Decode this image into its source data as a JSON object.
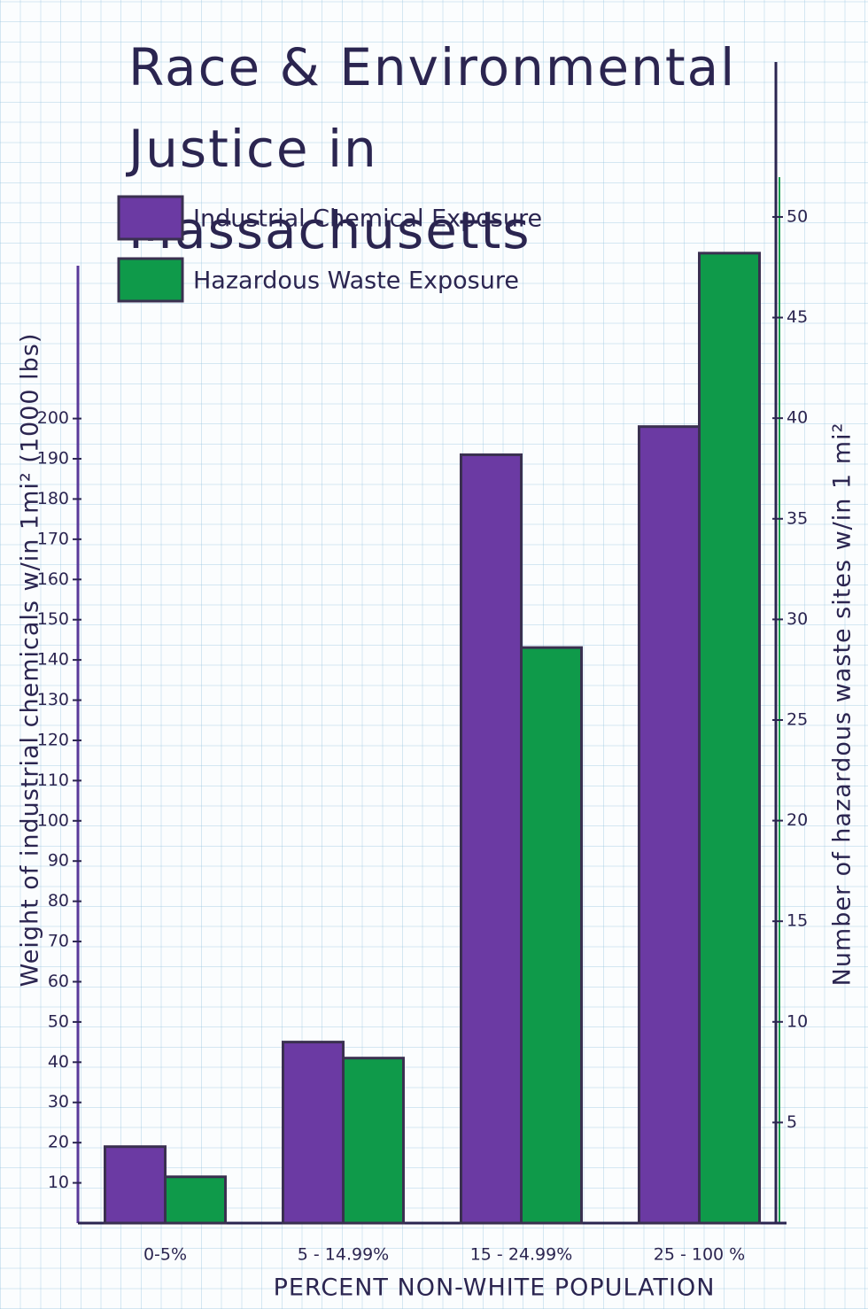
{
  "chart_data": {
    "type": "bar",
    "title": "Race & Environmental Justice in Massachusetts",
    "x_label": "PERCENT NON-WHITE POPULATION",
    "y_label": "Weight of industrial chemicals w/in 1mi² (1000 lbs)",
    "y2_label": "Number of hazardous waste sites w/in 1 mi²",
    "categories": [
      "0-5%",
      "5 - 14.99%",
      "15 - 24.99%",
      "25 - 100 %"
    ],
    "series": [
      {
        "name": "Industrial Chemical Exposure",
        "color": "#6b3aa3",
        "values": [
          19,
          45,
          191,
          198
        ]
      },
      {
        "name": "Hazardous Waste Exposure",
        "color": "#0f9a4a",
        "values": [
          2.3,
          8.2,
          28.6,
          48.2
        ],
        "axis": "y2"
      }
    ],
    "ylim": [
      0,
      238
    ],
    "yticks": [
      10,
      20,
      30,
      40,
      50,
      60,
      70,
      80,
      90,
      100,
      110,
      120,
      130,
      140,
      150,
      160,
      170,
      180,
      190,
      200
    ],
    "y2lim": [
      0,
      57.7
    ],
    "y2ticks": [
      5,
      10,
      15,
      20,
      25,
      30,
      35,
      40,
      45,
      50
    ]
  }
}
